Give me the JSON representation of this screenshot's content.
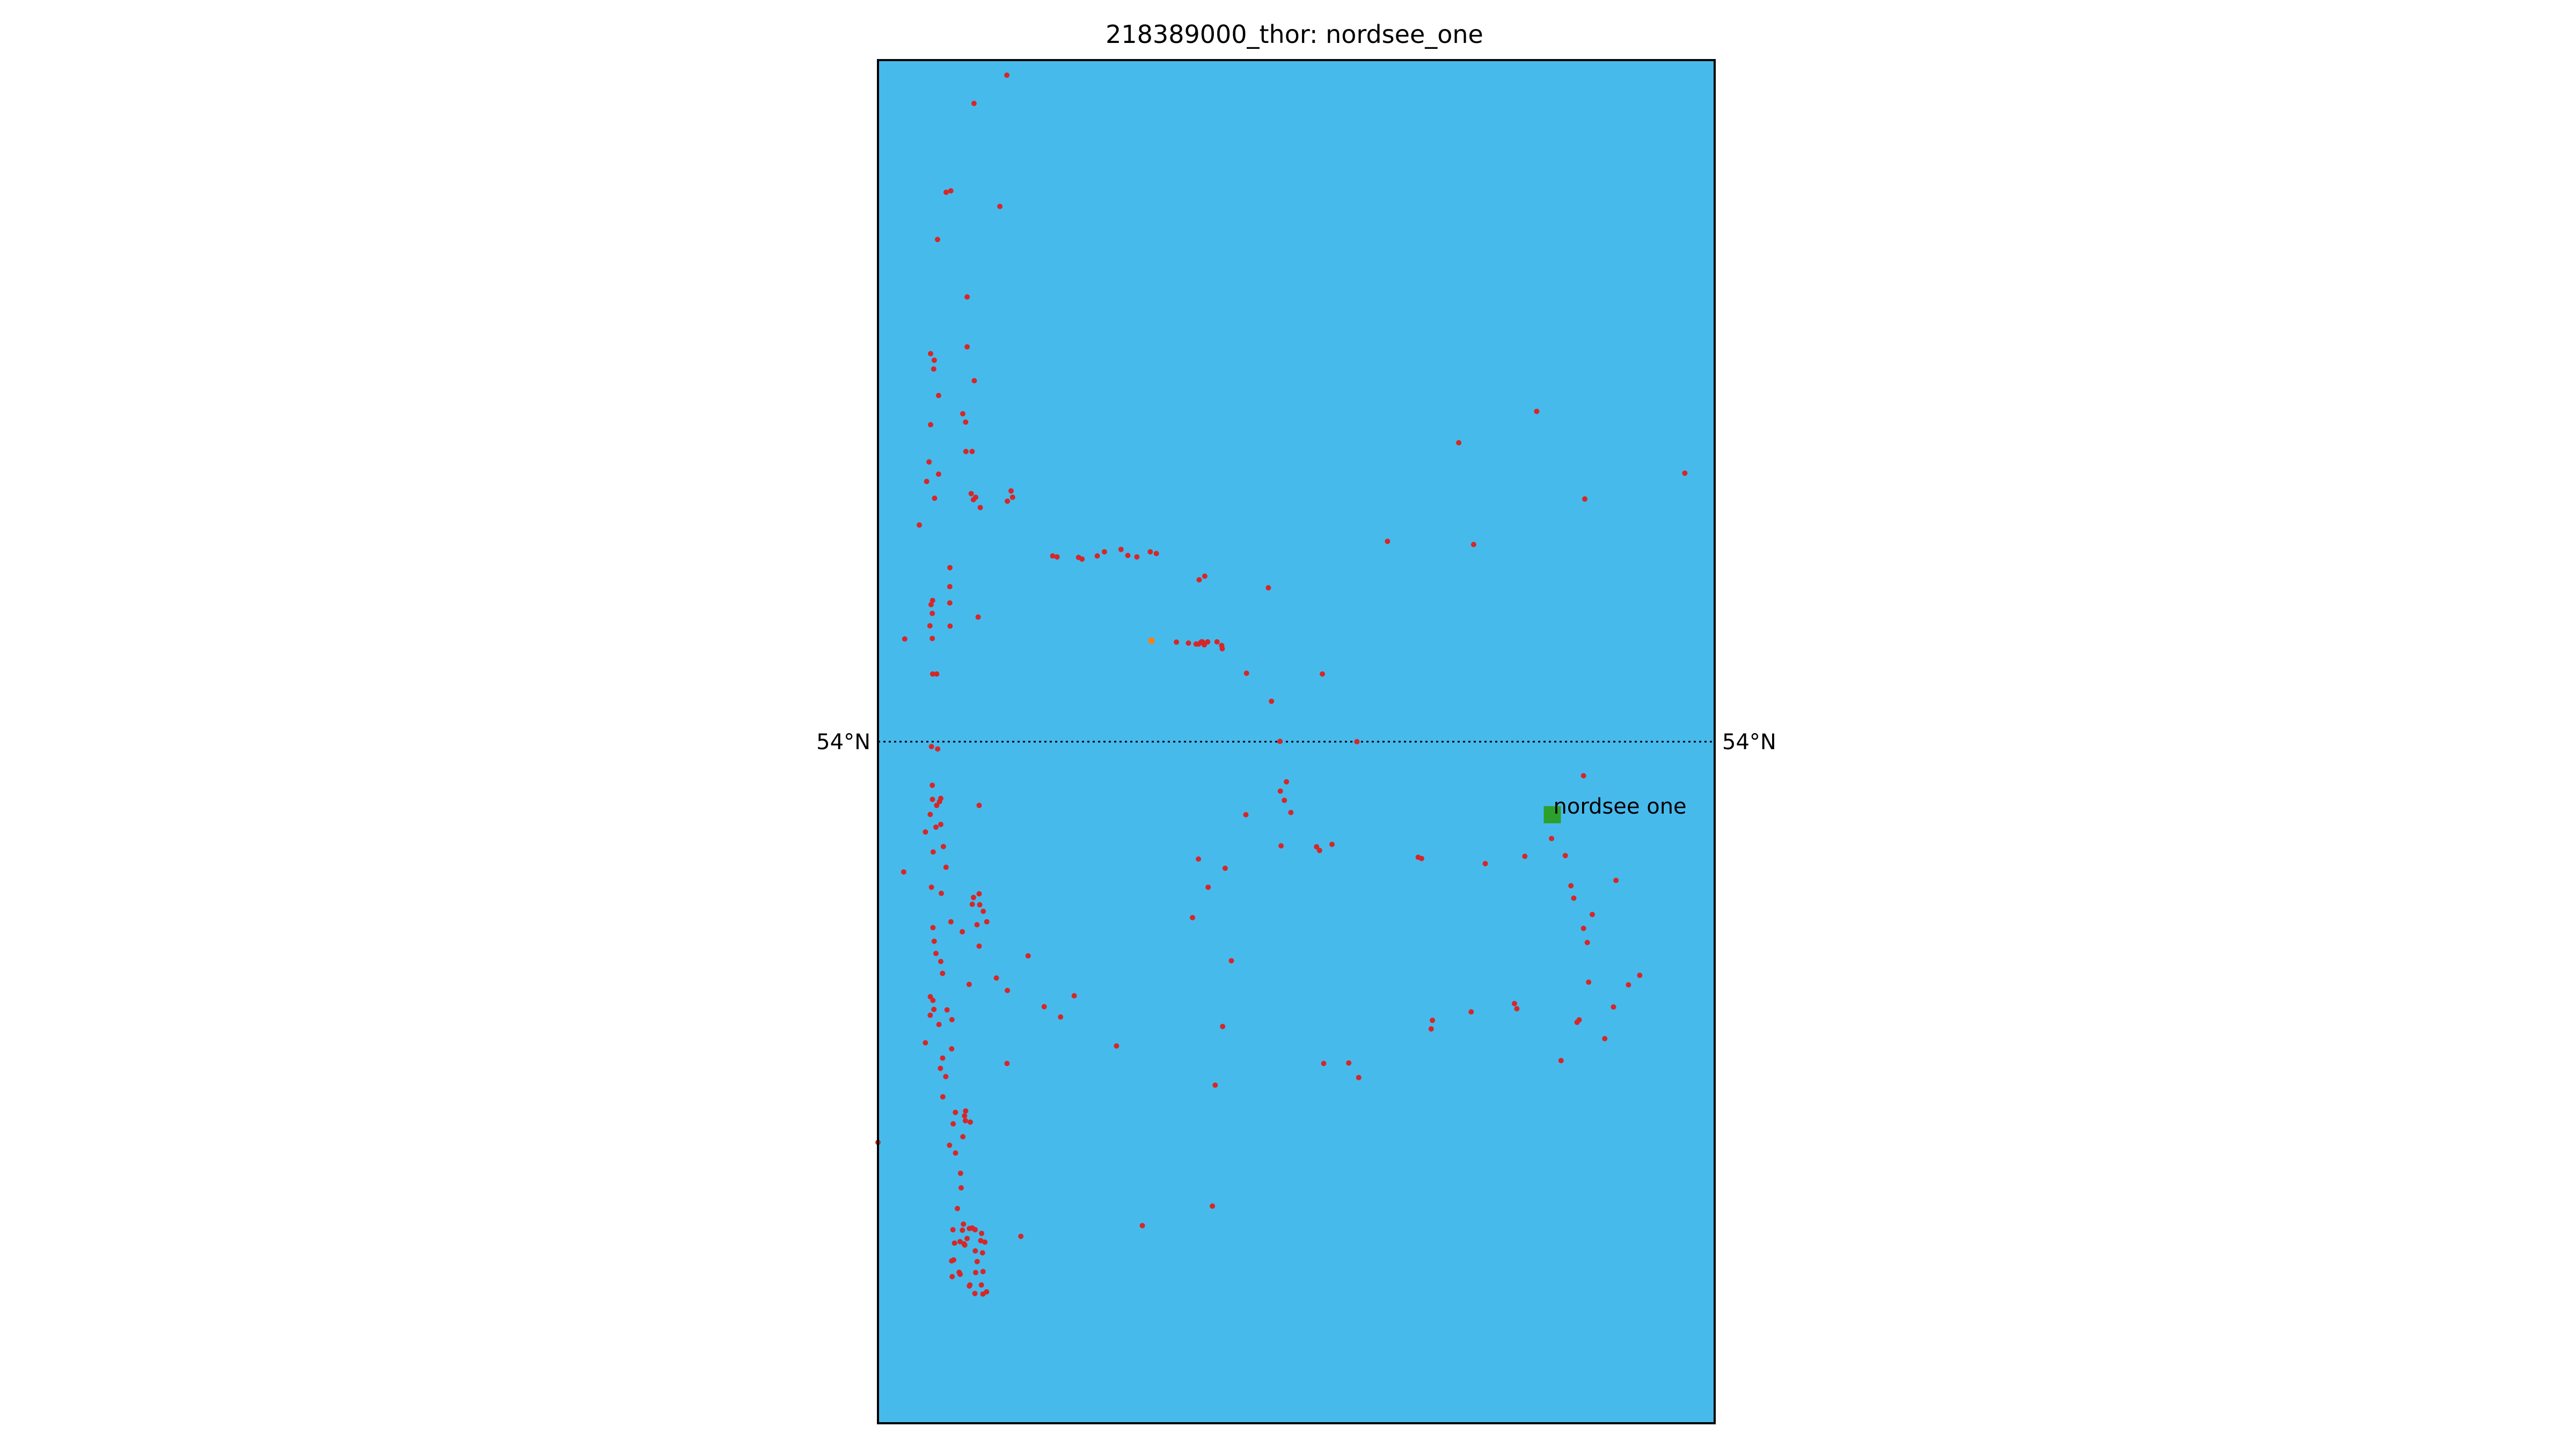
{
  "title": "218389000_thor: nordsee_one",
  "map": {
    "background_color": "#47BAEC",
    "frame_color": "#000000",
    "latitude_line": {
      "value": 54,
      "label": "54°N",
      "style": "dotted"
    },
    "lon_range": [
      6.08,
      6.75
    ],
    "lat_range": [
      53.72,
      54.28
    ]
  },
  "site_marker": {
    "label": "nordsee one",
    "lon": 6.62,
    "lat": 53.97,
    "color": "#2CA02C",
    "shape": "square"
  },
  "track_points": {
    "color": "#D62728",
    "highlight_color": "#FF7F0E",
    "points": [
      [
        6.1832,
        54.2738
      ],
      [
        6.1569,
        54.2622
      ],
      [
        6.1346,
        54.2257
      ],
      [
        6.1383,
        54.2263
      ],
      [
        6.1776,
        54.2199
      ],
      [
        6.1277,
        54.2063
      ],
      [
        6.1514,
        54.1827
      ],
      [
        6.1514,
        54.1622
      ],
      [
        6.1221,
        54.1594
      ],
      [
        6.1251,
        54.1567
      ],
      [
        6.1571,
        54.1483
      ],
      [
        6.1246,
        54.1531
      ],
      [
        6.1285,
        54.1422
      ],
      [
        6.1479,
        54.1347
      ],
      [
        6.1502,
        54.1313
      ],
      [
        6.1221,
        54.1302
      ],
      [
        6.1504,
        54.1192
      ],
      [
        6.1554,
        54.1192
      ],
      [
        6.1209,
        54.1149
      ],
      [
        6.1285,
        54.1099
      ],
      [
        6.119,
        54.1069
      ],
      [
        6.1546,
        54.1019
      ],
      [
        6.1582,
        54.1004
      ],
      [
        6.1564,
        54.0994
      ],
      [
        6.1866,
        54.103
      ],
      [
        6.1878,
        54.1004
      ],
      [
        6.1836,
        54.0988
      ],
      [
        6.1253,
        54.1
      ],
      [
        6.1619,
        54.0962
      ],
      [
        6.1131,
        54.089
      ],
      [
        6.1376,
        54.0715
      ],
      [
        6.1375,
        54.0637
      ],
      [
        6.1237,
        54.058
      ],
      [
        6.1375,
        54.057
      ],
      [
        6.1225,
        54.0563
      ],
      [
        6.1235,
        54.0527
      ],
      [
        6.1602,
        54.0512
      ],
      [
        6.1216,
        54.0476
      ],
      [
        6.1377,
        54.0475
      ],
      [
        6.1014,
        54.0422
      ],
      [
        6.1235,
        54.0424
      ],
      [
        6.2613,
        54.078
      ],
      [
        6.2556,
        54.0763
      ],
      [
        6.3029,
        54.0773
      ],
      [
        6.298,
        54.078
      ],
      [
        6.2801,
        54.0765
      ],
      [
        6.2873,
        54.0759
      ],
      [
        6.2746,
        54.079
      ],
      [
        6.2199,
        54.0763
      ],
      [
        6.2234,
        54.0759
      ],
      [
        6.2406,
        54.0757
      ],
      [
        6.2434,
        54.075
      ],
      [
        6.3417,
        54.068
      ],
      [
        6.3372,
        54.0665
      ],
      [
        6.3926,
        54.0632
      ],
      [
        6.344,
        54.041
      ],
      [
        6.3406,
        54.0405
      ],
      [
        6.3515,
        54.041
      ],
      [
        6.3397,
        54.041
      ],
      [
        6.3286,
        54.0405
      ],
      [
        6.319,
        54.0409
      ],
      [
        6.3552,
        54.0395
      ],
      [
        6.3557,
        54.0382
      ],
      [
        6.3413,
        54.0398
      ],
      [
        6.3347,
        54.0401
      ],
      [
        6.3367,
        54.0401
      ],
      [
        6.3389,
        54.041
      ],
      [
        6.3751,
        54.0281
      ],
      [
        6.4359,
        54.0278
      ],
      [
        6.3951,
        54.0166
      ],
      [
        6.488,
        54.0823
      ],
      [
        6.5451,
        54.1228
      ],
      [
        6.6075,
        54.1357
      ],
      [
        6.1238,
        54.0278
      ],
      [
        6.127,
        54.0278
      ],
      [
        6.1228,
        53.998
      ],
      [
        6.1278,
        53.997
      ],
      [
        6.1235,
        53.9821
      ],
      [
        6.1303,
        53.9767
      ],
      [
        6.1293,
        53.9754
      ],
      [
        6.1236,
        53.9763
      ],
      [
        6.127,
        53.9738
      ],
      [
        6.161,
        53.9738
      ],
      [
        6.1218,
        53.9701
      ],
      [
        6.1264,
        53.9649
      ],
      [
        6.118,
        53.9629
      ],
      [
        6.1303,
        53.966
      ],
      [
        6.1324,
        53.9569
      ],
      [
        6.1242,
        53.9547
      ],
      [
        6.1345,
        53.9484
      ],
      [
        6.1006,
        53.9465
      ],
      [
        6.1228,
        53.9402
      ],
      [
        6.1307,
        53.9377
      ],
      [
        6.1384,
        53.926
      ],
      [
        6.1475,
        53.9219
      ],
      [
        6.124,
        53.9236
      ],
      [
        6.125,
        53.918
      ],
      [
        6.1264,
        53.913
      ],
      [
        6.1303,
        53.9097
      ],
      [
        6.1317,
        53.9048
      ],
      [
        6.153,
        53.9003
      ],
      [
        6.1219,
        53.8952
      ],
      [
        6.124,
        53.8937
      ],
      [
        6.1248,
        53.89
      ],
      [
        6.1218,
        53.8876
      ],
      [
        6.1353,
        53.8898
      ],
      [
        6.1392,
        53.8858
      ],
      [
        6.1288,
        53.8838
      ],
      [
        6.118,
        53.8763
      ],
      [
        6.139,
        53.8738
      ],
      [
        6.1318,
        53.87
      ],
      [
        6.13,
        53.8658
      ],
      [
        6.1343,
        53.8624
      ],
      [
        6.1319,
        53.8541
      ],
      [
        6.1402,
        53.843
      ],
      [
        6.142,
        53.8477
      ],
      [
        6.1493,
        53.8463
      ],
      [
        6.15,
        53.8443
      ],
      [
        6.148,
        53.8377
      ],
      [
        6.1539,
        53.8437
      ],
      [
        6.1502,
        53.8483
      ],
      [
        6.1373,
        53.8342
      ],
      [
        6.1421,
        53.831
      ],
      [
        6.1466,
        53.8167
      ],
      [
        6.1436,
        53.8082
      ],
      [
        6.1484,
        53.8018
      ],
      [
        6.1532,
        53.8
      ],
      [
        6.1514,
        53.7959
      ],
      [
        6.1555,
        53.8002
      ],
      [
        6.1489,
        53.7937
      ],
      [
        6.1495,
        53.7932
      ],
      [
        6.1457,
        53.7946
      ],
      [
        6.1476,
        53.7993
      ],
      [
        6.1578,
        53.7995
      ],
      [
        6.163,
        53.798
      ],
      [
        6.1623,
        53.795
      ],
      [
        6.1656,
        53.7944
      ],
      [
        6.1579,
        53.7908
      ],
      [
        6.1637,
        53.79
      ],
      [
        6.1594,
        53.7864
      ],
      [
        6.1641,
        53.7823
      ],
      [
        6.1536,
        53.7768
      ],
      [
        6.1628,
        53.7768
      ],
      [
        6.1461,
        53.8227
      ],
      [
        6.14,
        53.7995
      ],
      [
        6.1413,
        53.794
      ],
      [
        6.139,
        53.7867
      ],
      [
        6.145,
        53.782
      ],
      [
        6.1394,
        53.7802
      ],
      [
        6.1458,
        53.7812
      ],
      [
        6.1406,
        53.7871
      ],
      [
        6.1532,
        53.7764
      ],
      [
        6.1582,
        53.7819
      ],
      [
        6.164,
        53.7731
      ],
      [
        6.1576,
        53.7733
      ],
      [
        6.167,
        53.774
      ],
      [
        6.08,
        53.8354
      ],
      [
        6.1944,
        53.7968
      ],
      [
        6.2917,
        53.8012
      ],
      [
        6.3478,
        53.8092
      ],
      [
        6.1833,
        53.8678
      ],
      [
        6.2002,
        53.912
      ],
      [
        6.2262,
        53.8869
      ],
      [
        6.2371,
        53.8956
      ],
      [
        6.2131,
        53.8911
      ],
      [
        6.3319,
        53.9277
      ],
      [
        6.3444,
        53.9402
      ],
      [
        6.3366,
        53.9518
      ],
      [
        6.3746,
        53.97
      ],
      [
        6.4022,
        53.9797
      ],
      [
        6.4071,
        53.9835
      ],
      [
        6.4054,
        53.9759
      ],
      [
        6.4106,
        53.9709
      ],
      [
        6.4028,
        53.9572
      ],
      [
        6.4312,
        53.9568
      ],
      [
        6.4336,
        53.9553
      ],
      [
        6.4436,
        53.9578
      ],
      [
        6.5153,
        53.952
      ],
      [
        6.5126,
        53.9525
      ],
      [
        6.5663,
        53.9499
      ],
      [
        6.598,
        53.9529
      ],
      [
        6.6194,
        53.9602
      ],
      [
        6.6304,
        53.9532
      ],
      [
        6.6349,
        53.9408
      ],
      [
        6.6372,
        53.9357
      ],
      [
        6.645,
        53.9233
      ],
      [
        6.648,
        53.9175
      ],
      [
        6.5916,
        53.8903
      ],
      [
        6.5897,
        53.8924
      ],
      [
        6.6398,
        53.8847
      ],
      [
        6.6415,
        53.8857
      ],
      [
        6.6491,
        53.9012
      ],
      [
        6.4369,
        53.8678
      ],
      [
        6.35,
        53.8589
      ],
      [
        6.271,
        53.875
      ],
      [
        6.1836,
        53.8978
      ],
      [
        6.1748,
        53.9029
      ],
      [
        6.161,
        53.916
      ],
      [
        6.1593,
        53.9248
      ],
      [
        6.1671,
        53.926
      ],
      [
        6.1643,
        53.9303
      ],
      [
        6.1615,
        53.933
      ],
      [
        6.1565,
        53.936
      ],
      [
        6.1555,
        53.9332
      ],
      [
        6.161,
        53.9375
      ],
      [
        6.4019,
        54.0001
      ],
      [
        6.4635,
        54.0
      ],
      [
        6.557,
        54.081
      ],
      [
        6.646,
        54.0997
      ],
      [
        6.7261,
        54.1103
      ],
      [
        6.652,
        53.929
      ],
      [
        6.671,
        53.943
      ],
      [
        6.645,
        53.986
      ],
      [
        6.358,
        53.948
      ],
      [
        6.363,
        53.91
      ],
      [
        6.356,
        53.883
      ],
      [
        6.457,
        53.868
      ],
      [
        6.465,
        53.862
      ],
      [
        6.555,
        53.889
      ],
      [
        6.523,
        53.882
      ],
      [
        6.524,
        53.8855
      ],
      [
        6.627,
        53.869
      ],
      [
        6.662,
        53.878
      ],
      [
        6.669,
        53.891
      ],
      [
        6.681,
        53.9001
      ],
      [
        6.69,
        53.904
      ]
    ],
    "highlight_points": [
      [
        6.299,
        54.0415
      ]
    ]
  }
}
